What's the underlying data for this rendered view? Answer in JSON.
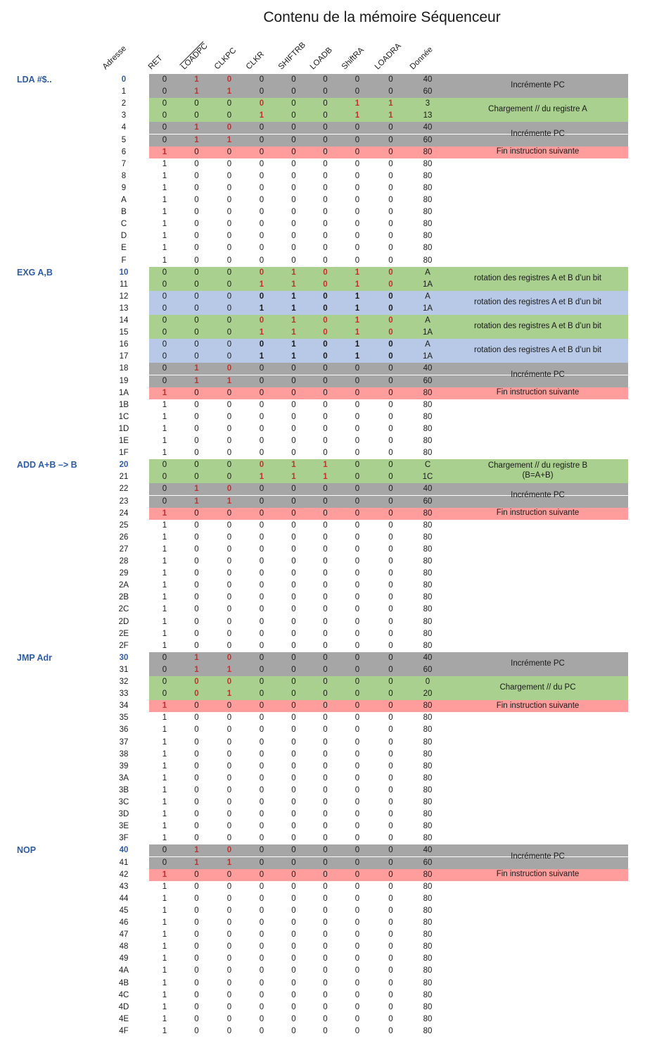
{
  "title": "Contenu de la mémoire Séquenceur",
  "colors": {
    "band_gray": "#a6a6a6",
    "band_green": "#a9d08e",
    "band_blue": "#b7c9e6",
    "band_pink": "#ff9d9d",
    "accent_blue": "#2e5ca6",
    "digit_red": "#c43030",
    "text": "#1a1a1a"
  },
  "columns": [
    {
      "label": "Adresse",
      "overline": false
    },
    {
      "label": "RET",
      "overline": false
    },
    {
      "label": "LOADPC",
      "overline": true
    },
    {
      "label": "CLKPC",
      "overline": false
    },
    {
      "label": "CLKR",
      "overline": false
    },
    {
      "label": "SHIFTRB",
      "overline": false
    },
    {
      "label": "LOADB",
      "overline": false
    },
    {
      "label": "ShiftRA",
      "overline": false
    },
    {
      "label": "LOADRA",
      "overline": false
    },
    {
      "label": "Donnée",
      "overline": false
    }
  ],
  "sections": [
    {
      "row": 0,
      "label": "LDA #$.."
    },
    {
      "row": 16,
      "label": "EXG A,B"
    },
    {
      "row": 32,
      "label": "ADD A+B –> B"
    },
    {
      "row": 48,
      "label": "JMP Adr"
    },
    {
      "row": 64,
      "label": "NOP"
    }
  ],
  "rows": [
    {
      "a": "0",
      "hl": true,
      "bg": "gray",
      "bits": "01000000",
      "st": ".rr.....",
      "d": "40"
    },
    {
      "a": "1",
      "bg": "gray",
      "bits": "01100000",
      "st": ".rr.....",
      "d": "60"
    },
    {
      "a": "2",
      "bg": "green",
      "bits": "00000011",
      "st": "...r..rr",
      "d": "3"
    },
    {
      "a": "3",
      "bg": "green",
      "bits": "00010011",
      "st": "...r..rr",
      "d": "13"
    },
    {
      "a": "4",
      "bg": "gray",
      "bits": "01000000",
      "st": ".rr.....",
      "d": "40"
    },
    {
      "a": "5",
      "bg": "gray",
      "bits": "01100000",
      "st": ".rr.....",
      "d": "60"
    },
    {
      "a": "6",
      "bg": "pink",
      "bits": "10000000",
      "st": "r.......",
      "d": "80"
    },
    {
      "a": "7",
      "bits": "10000000",
      "d": "80"
    },
    {
      "a": "8",
      "bits": "10000000",
      "d": "80"
    },
    {
      "a": "9",
      "bits": "10000000",
      "d": "80"
    },
    {
      "a": "A",
      "bits": "10000000",
      "d": "80"
    },
    {
      "a": "B",
      "bits": "10000000",
      "d": "80"
    },
    {
      "a": "C",
      "bits": "10000000",
      "d": "80"
    },
    {
      "a": "D",
      "bits": "10000000",
      "d": "80"
    },
    {
      "a": "E",
      "bits": "10000000",
      "d": "80"
    },
    {
      "a": "F",
      "bits": "10000000",
      "d": "80"
    },
    {
      "a": "10",
      "hl": true,
      "bg": "green",
      "bits": "00001010",
      "st": "...rrrrr",
      "d": "A"
    },
    {
      "a": "11",
      "bg": "green",
      "bits": "00011010",
      "st": "...rrrrr",
      "d": "1A"
    },
    {
      "a": "12",
      "bg": "blue",
      "bits": "00001010",
      "st": "...bbbbb",
      "d": "A"
    },
    {
      "a": "13",
      "bg": "blue",
      "bits": "00011010",
      "st": "...bbbbb",
      "d": "1A"
    },
    {
      "a": "14",
      "bg": "green",
      "bits": "00001010",
      "st": "...rrrrr",
      "d": "A"
    },
    {
      "a": "15",
      "bg": "green",
      "bits": "00011010",
      "st": "...rrrrr",
      "d": "1A"
    },
    {
      "a": "16",
      "bg": "blue",
      "bits": "00001010",
      "st": "...bbbbb",
      "d": "A"
    },
    {
      "a": "17",
      "bg": "blue",
      "bits": "00011010",
      "st": "...bbbbb",
      "d": "1A"
    },
    {
      "a": "18",
      "bg": "gray",
      "bits": "01000000",
      "st": ".rr.....",
      "d": "40"
    },
    {
      "a": "19",
      "bg": "gray",
      "bits": "01100000",
      "st": ".rr.....",
      "d": "60"
    },
    {
      "a": "1A",
      "bg": "pink",
      "bits": "10000000",
      "st": "r.......",
      "d": "80"
    },
    {
      "a": "1B",
      "bits": "10000000",
      "d": "80"
    },
    {
      "a": "1C",
      "bits": "10000000",
      "d": "80"
    },
    {
      "a": "1D",
      "bits": "10000000",
      "d": "80"
    },
    {
      "a": "1E",
      "bits": "10000000",
      "d": "80"
    },
    {
      "a": "1F",
      "bits": "10000000",
      "d": "80"
    },
    {
      "a": "20",
      "hl": true,
      "bg": "green",
      "bits": "00001100",
      "st": "...rrr..",
      "d": "C"
    },
    {
      "a": "21",
      "bg": "green",
      "bits": "00011100",
      "st": "...rrr..",
      "d": "1C"
    },
    {
      "a": "22",
      "bg": "gray",
      "bits": "01000000",
      "st": ".rr.....",
      "d": "40"
    },
    {
      "a": "23",
      "bg": "gray",
      "bits": "01100000",
      "st": ".rr.....",
      "d": "60"
    },
    {
      "a": "24",
      "bg": "pink",
      "bits": "10000000",
      "st": "r.......",
      "d": "80"
    },
    {
      "a": "25",
      "bits": "10000000",
      "d": "80"
    },
    {
      "a": "26",
      "bits": "10000000",
      "d": "80"
    },
    {
      "a": "27",
      "bits": "10000000",
      "d": "80"
    },
    {
      "a": "28",
      "bits": "10000000",
      "d": "80"
    },
    {
      "a": "29",
      "bits": "10000000",
      "d": "80"
    },
    {
      "a": "2A",
      "bits": "10000000",
      "d": "80"
    },
    {
      "a": "2B",
      "bits": "10000000",
      "d": "80"
    },
    {
      "a": "2C",
      "bits": "10000000",
      "d": "80"
    },
    {
      "a": "2D",
      "bits": "10000000",
      "d": "80"
    },
    {
      "a": "2E",
      "bits": "10000000",
      "d": "80"
    },
    {
      "a": "2F",
      "bits": "10000000",
      "d": "80"
    },
    {
      "a": "30",
      "hl": true,
      "bg": "gray",
      "bits": "01000000",
      "st": ".rr.....",
      "d": "40"
    },
    {
      "a": "31",
      "bg": "gray",
      "bits": "01100000",
      "st": ".rr.....",
      "d": "60"
    },
    {
      "a": "32",
      "bg": "green",
      "bits": "00000000",
      "st": ".rr.....",
      "d": "0"
    },
    {
      "a": "33",
      "bg": "green",
      "bits": "00100000",
      "st": ".rr.....",
      "d": "20"
    },
    {
      "a": "34",
      "bg": "pink",
      "bits": "10000000",
      "st": "r.......",
      "d": "80"
    },
    {
      "a": "35",
      "bits": "10000000",
      "d": "80"
    },
    {
      "a": "36",
      "bits": "10000000",
      "d": "80"
    },
    {
      "a": "37",
      "bits": "10000000",
      "d": "80"
    },
    {
      "a": "38",
      "bits": "10000000",
      "d": "80"
    },
    {
      "a": "39",
      "bits": "10000000",
      "d": "80"
    },
    {
      "a": "3A",
      "bits": "10000000",
      "d": "80"
    },
    {
      "a": "3B",
      "bits": "10000000",
      "d": "80"
    },
    {
      "a": "3C",
      "bits": "10000000",
      "d": "80"
    },
    {
      "a": "3D",
      "bits": "10000000",
      "d": "80"
    },
    {
      "a": "3E",
      "bits": "10000000",
      "d": "80"
    },
    {
      "a": "3F",
      "bits": "10000000",
      "d": "80"
    },
    {
      "a": "40",
      "hl": true,
      "bg": "gray",
      "bits": "01000000",
      "st": ".rr.....",
      "d": "40"
    },
    {
      "a": "41",
      "bg": "gray",
      "bits": "01100000",
      "st": ".rr.....",
      "d": "60"
    },
    {
      "a": "42",
      "bg": "pink",
      "bits": "10000000",
      "st": "r.......",
      "d": "80"
    },
    {
      "a": "43",
      "bits": "10000000",
      "d": "80"
    },
    {
      "a": "44",
      "bits": "10000000",
      "d": "80"
    },
    {
      "a": "45",
      "bits": "10000000",
      "d": "80"
    },
    {
      "a": "46",
      "bits": "10000000",
      "d": "80"
    },
    {
      "a": "47",
      "bits": "10000000",
      "d": "80"
    },
    {
      "a": "48",
      "bits": "10000000",
      "d": "80"
    },
    {
      "a": "49",
      "bits": "10000000",
      "d": "80"
    },
    {
      "a": "4A",
      "bits": "10000000",
      "d": "80"
    },
    {
      "a": "4B",
      "bits": "10000000",
      "d": "80"
    },
    {
      "a": "4C",
      "bits": "10000000",
      "d": "80"
    },
    {
      "a": "4D",
      "bits": "10000000",
      "d": "80"
    },
    {
      "a": "4E",
      "bits": "10000000",
      "d": "80"
    },
    {
      "a": "4F",
      "bits": "10000000",
      "d": "80"
    }
  ],
  "annotations": [
    {
      "start": 0,
      "span": 2,
      "lines": [
        "Incrémente PC"
      ]
    },
    {
      "start": 2,
      "span": 2,
      "lines": [
        "Chargement // du registre A"
      ]
    },
    {
      "start": 4,
      "span": 2,
      "lines": [
        "Incrémente PC"
      ]
    },
    {
      "start": 6,
      "span": 1,
      "lines": [
        "Fin instruction suivante"
      ]
    },
    {
      "start": 16,
      "span": 2,
      "lines": [
        "rotation des registres A et B d’un bit"
      ]
    },
    {
      "start": 18,
      "span": 2,
      "lines": [
        "rotation des registres A et B d’un bit"
      ]
    },
    {
      "start": 20,
      "span": 2,
      "lines": [
        "rotation des registres A et B d’un bit"
      ]
    },
    {
      "start": 22,
      "span": 2,
      "lines": [
        "rotation des registres A et B d’un bit"
      ]
    },
    {
      "start": 24,
      "span": 2,
      "lines": [
        "Incrémente PC"
      ]
    },
    {
      "start": 26,
      "span": 1,
      "lines": [
        "Fin instruction suivante"
      ]
    },
    {
      "start": 32,
      "span": 2,
      "lines": [
        "Chargement // du registre B",
        "(B=A+B)"
      ]
    },
    {
      "start": 34,
      "span": 2,
      "lines": [
        "Incrémente PC"
      ]
    },
    {
      "start": 36,
      "span": 1,
      "lines": [
        "Fin instruction suivante"
      ]
    },
    {
      "start": 48,
      "span": 2,
      "lines": [
        "Incrémente PC"
      ]
    },
    {
      "start": 50,
      "span": 2,
      "lines": [
        "Chargement // du PC"
      ]
    },
    {
      "start": 52,
      "span": 1,
      "lines": [
        "Fin instruction suivante"
      ]
    },
    {
      "start": 64,
      "span": 2,
      "lines": [
        "Incrémente PC"
      ]
    },
    {
      "start": 66,
      "span": 1,
      "lines": [
        "Fin instruction suivante"
      ]
    }
  ]
}
